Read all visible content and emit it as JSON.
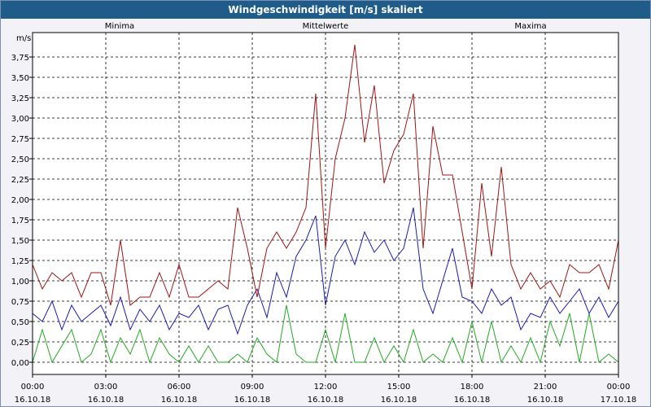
{
  "chart_data": {
    "type": "line",
    "title": "Windgeschwindigkeit [m/s] skaliert",
    "ylabel": "m/s",
    "ylim": [
      -0.15,
      4.05
    ],
    "yticks": [
      "0,00",
      "0,25",
      "0,50",
      "0,75",
      "1,00",
      "1,25",
      "1,50",
      "1,75",
      "2,00",
      "2,25",
      "2,50",
      "2,75",
      "3,00",
      "3,25",
      "3,50",
      "3,75"
    ],
    "ytick_values": [
      0,
      0.25,
      0.5,
      0.75,
      1.0,
      1.25,
      1.5,
      1.75,
      2.0,
      2.25,
      2.5,
      2.75,
      3.0,
      3.25,
      3.5,
      3.75
    ],
    "xlim": [
      0,
      24
    ],
    "xtick_times": [
      "00:00",
      "03:00",
      "06:00",
      "09:00",
      "12:00",
      "15:00",
      "18:00",
      "21:00",
      "00:00"
    ],
    "xtick_dates": [
      "16.10.18",
      "16.10.18",
      "16.10.18",
      "16.10.18",
      "16.10.18",
      "16.10.18",
      "16.10.18",
      "16.10.18",
      "17.10.18"
    ],
    "grid": true,
    "series": [
      {
        "name": "Minima",
        "color": "#22aa22",
        "x": [
          0,
          0.4,
          0.8,
          1.2,
          1.6,
          2.0,
          2.4,
          2.8,
          3.2,
          3.6,
          4.0,
          4.4,
          4.8,
          5.2,
          5.6,
          6.0,
          6.4,
          6.8,
          7.2,
          7.6,
          8.0,
          8.4,
          8.8,
          9.2,
          9.6,
          10.0,
          10.4,
          10.8,
          11.2,
          11.6,
          12.0,
          12.4,
          12.8,
          13.2,
          13.6,
          14.0,
          14.4,
          14.8,
          15.2,
          15.6,
          16.0,
          16.4,
          16.8,
          17.2,
          17.6,
          18.0,
          18.4,
          18.8,
          19.2,
          19.6,
          20.0,
          20.4,
          20.8,
          21.2,
          21.6,
          22.0,
          22.4,
          22.8,
          23.2,
          23.6,
          24.0
        ],
        "values": [
          0,
          0.4,
          0,
          0.2,
          0.4,
          0,
          0.1,
          0.4,
          0,
          0.3,
          0.1,
          0.4,
          0,
          0.3,
          0.1,
          0,
          0.2,
          0,
          0.2,
          0,
          0,
          0.1,
          0,
          0.3,
          0.1,
          0,
          0.7,
          0.1,
          0,
          0,
          0.4,
          0,
          0.6,
          0,
          0,
          0.3,
          0,
          0.2,
          0,
          0.4,
          0,
          0.1,
          0,
          0.3,
          0,
          0.5,
          0,
          0.5,
          0,
          0.2,
          0,
          0.3,
          0,
          0.5,
          0.2,
          0.6,
          0,
          0.6,
          0,
          0.1,
          0
        ]
      },
      {
        "name": "Mittelwerte",
        "color": "#1a1ab4",
        "x": [
          0,
          0.4,
          0.8,
          1.2,
          1.6,
          2.0,
          2.4,
          2.8,
          3.2,
          3.6,
          4.0,
          4.4,
          4.8,
          5.2,
          5.6,
          6.0,
          6.4,
          6.8,
          7.2,
          7.6,
          8.0,
          8.4,
          8.8,
          9.2,
          9.6,
          10.0,
          10.4,
          10.8,
          11.2,
          11.6,
          12.0,
          12.4,
          12.8,
          13.2,
          13.6,
          14.0,
          14.4,
          14.8,
          15.2,
          15.6,
          16.0,
          16.4,
          16.8,
          17.2,
          17.6,
          18.0,
          18.4,
          18.8,
          19.2,
          19.6,
          20.0,
          20.4,
          20.8,
          21.2,
          21.6,
          22.0,
          22.4,
          22.8,
          23.2,
          23.6,
          24.0
        ],
        "values": [
          0.6,
          0.5,
          0.75,
          0.4,
          0.7,
          0.5,
          0.6,
          0.7,
          0.45,
          0.8,
          0.4,
          0.65,
          0.5,
          0.7,
          0.4,
          0.6,
          0.55,
          0.7,
          0.4,
          0.65,
          0.7,
          0.35,
          0.7,
          0.9,
          0.55,
          1.1,
          0.8,
          1.3,
          1.5,
          1.8,
          0.7,
          1.3,
          1.5,
          1.2,
          1.6,
          1.35,
          1.5,
          1.25,
          1.4,
          1.9,
          0.9,
          0.6,
          1.0,
          1.4,
          0.8,
          0.75,
          0.6,
          0.9,
          0.7,
          0.8,
          0.4,
          0.6,
          0.55,
          0.8,
          0.6,
          0.75,
          0.9,
          0.6,
          0.8,
          0.55,
          0.75
        ]
      },
      {
        "name": "Maxima",
        "color": "#a01414",
        "x": [
          0,
          0.4,
          0.8,
          1.2,
          1.6,
          2.0,
          2.4,
          2.8,
          3.2,
          3.6,
          4.0,
          4.4,
          4.8,
          5.2,
          5.6,
          6.0,
          6.4,
          6.8,
          7.2,
          7.6,
          8.0,
          8.4,
          8.8,
          9.2,
          9.6,
          10.0,
          10.4,
          10.8,
          11.2,
          11.6,
          12.0,
          12.4,
          12.8,
          13.2,
          13.6,
          14.0,
          14.4,
          14.8,
          15.2,
          15.6,
          16.0,
          16.4,
          16.8,
          17.2,
          17.6,
          18.0,
          18.4,
          18.8,
          19.2,
          19.6,
          20.0,
          20.4,
          20.8,
          21.2,
          21.6,
          22.0,
          22.4,
          22.8,
          23.2,
          23.6,
          24.0
        ],
        "values": [
          1.2,
          0.9,
          1.1,
          1.0,
          1.1,
          0.8,
          1.1,
          1.1,
          0.7,
          1.5,
          0.7,
          0.8,
          0.8,
          1.1,
          0.8,
          1.2,
          0.8,
          0.8,
          0.9,
          1.0,
          0.9,
          1.9,
          1.4,
          0.8,
          1.4,
          1.6,
          1.4,
          1.6,
          1.9,
          3.3,
          1.4,
          2.5,
          3.0,
          3.9,
          2.7,
          3.4,
          2.2,
          2.6,
          2.8,
          3.3,
          1.4,
          2.9,
          2.3,
          2.3,
          1.6,
          0.9,
          2.2,
          1.3,
          2.4,
          1.2,
          0.9,
          1.1,
          0.9,
          1.0,
          0.8,
          1.2,
          1.1,
          1.1,
          1.2,
          0.9,
          1.5
        ]
      }
    ]
  }
}
